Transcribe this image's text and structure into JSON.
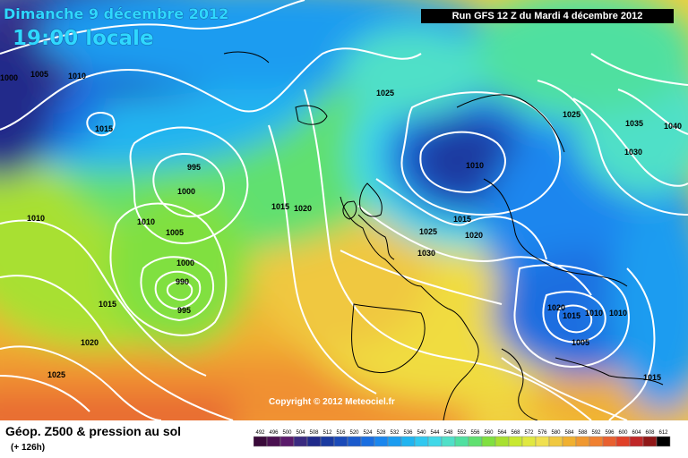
{
  "title": {
    "date": "Dimanche 9 décembre 2012",
    "time": "19:00 locale",
    "run": "Run GFS 12 Z du Mardi 4 décembre 2012"
  },
  "copyright": "Copyright © 2012 Meteociel.fr",
  "caption": {
    "main": "Géop. Z500 & pression au sol",
    "sub": "(+ 126h)"
  },
  "legend": {
    "values": [
      "492",
      "496",
      "500",
      "504",
      "508",
      "512",
      "516",
      "520",
      "524",
      "528",
      "532",
      "536",
      "540",
      "544",
      "548",
      "552",
      "556",
      "560",
      "564",
      "568",
      "572",
      "576",
      "580",
      "584",
      "588",
      "592",
      "596",
      "600",
      "604",
      "608",
      "612"
    ],
    "colors": [
      "#3a0a3a",
      "#4a1050",
      "#5a1a6a",
      "#3a2a80",
      "#202a8a",
      "#1a3aa0",
      "#1a4ab8",
      "#1a5acc",
      "#1a6ee0",
      "#1a86ee",
      "#1a9cf0",
      "#20b4f0",
      "#30c8f0",
      "#40d8e8",
      "#50e0c8",
      "#50e0a0",
      "#60e070",
      "#80e040",
      "#a8e030",
      "#c8e830",
      "#e0e840",
      "#f0e050",
      "#f0c840",
      "#f0b030",
      "#f09830",
      "#f08030",
      "#e86030",
      "#e04028",
      "#c02828",
      "#901818",
      "#000000"
    ]
  },
  "isobar_labels": [
    "1000",
    "1005",
    "1010",
    "1015",
    "1010",
    "995",
    "1000",
    "1010",
    "1005",
    "1000",
    "990",
    "995",
    "1015",
    "1020",
    "1025",
    "1015",
    "1020",
    "1010",
    "1025",
    "1015",
    "1020",
    "1025",
    "1030",
    "1025",
    "1035",
    "1030",
    "1040",
    "1020",
    "1015",
    "1010",
    "1010",
    "1005",
    "1015"
  ],
  "colors": {
    "title": "#2fd8ff",
    "isobar": "#ffffff",
    "run_bg": "#000000"
  }
}
